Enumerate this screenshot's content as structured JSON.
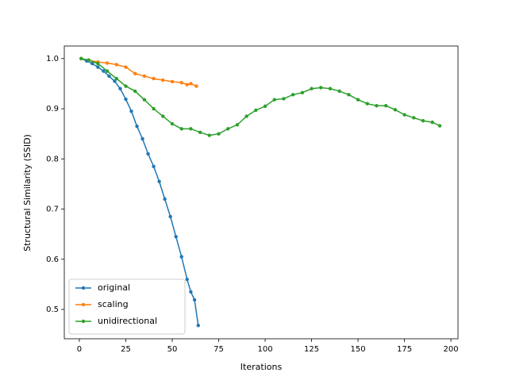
{
  "chart_data": {
    "type": "line",
    "xlabel": "Iterations",
    "ylabel": "Structural Similarity (SSID)",
    "xlim": [
      -8.1,
      203.8
    ],
    "ylim": [
      0.4415,
      1.025
    ],
    "xticks": [
      0,
      25,
      50,
      75,
      100,
      125,
      150,
      175,
      200
    ],
    "yticks": [
      {
        "value": 0.5,
        "label": "0.5"
      },
      {
        "value": 0.6,
        "label": "0.6"
      },
      {
        "value": 0.7,
        "label": "0.7"
      },
      {
        "value": 0.8,
        "label": "0.8"
      },
      {
        "value": 0.9,
        "label": "0.9"
      },
      {
        "value": 1.0,
        "label": "1.0"
      }
    ],
    "legend": "lower left",
    "series": [
      {
        "name": "original",
        "color": "#1f77b4",
        "x": [
          1,
          4,
          7,
          10,
          13,
          16,
          19,
          22,
          25,
          28,
          31,
          34,
          37,
          40,
          43,
          46,
          49,
          52,
          55,
          58,
          60,
          62,
          64
        ],
        "values": [
          1.0,
          0.995,
          0.99,
          0.983,
          0.975,
          0.965,
          0.955,
          0.94,
          0.919,
          0.895,
          0.865,
          0.84,
          0.81,
          0.785,
          0.755,
          0.72,
          0.685,
          0.645,
          0.605,
          0.56,
          0.535,
          0.519,
          0.468
        ]
      },
      {
        "name": "scaling",
        "color": "#ff7f0e",
        "x": [
          1,
          5,
          10,
          15,
          20,
          25,
          30,
          35,
          40,
          45,
          50,
          55,
          58,
          60,
          63
        ],
        "values": [
          1.0,
          0.997,
          0.993,
          0.991,
          0.988,
          0.983,
          0.97,
          0.965,
          0.96,
          0.957,
          0.954,
          0.952,
          0.948,
          0.95,
          0.945
        ]
      },
      {
        "name": "unidirectional",
        "color": "#2ca02c",
        "x": [
          1,
          5,
          10,
          15,
          20,
          25,
          30,
          35,
          40,
          45,
          50,
          55,
          60,
          65,
          70,
          75,
          80,
          85,
          90,
          95,
          100,
          105,
          110,
          115,
          120,
          125,
          130,
          135,
          140,
          145,
          150,
          155,
          160,
          165,
          170,
          175,
          180,
          185,
          190,
          194
        ],
        "values": [
          1.0,
          0.997,
          0.99,
          0.975,
          0.96,
          0.945,
          0.935,
          0.918,
          0.9,
          0.885,
          0.87,
          0.86,
          0.86,
          0.853,
          0.847,
          0.85,
          0.86,
          0.868,
          0.885,
          0.897,
          0.905,
          0.918,
          0.92,
          0.928,
          0.932,
          0.94,
          0.942,
          0.94,
          0.935,
          0.928,
          0.918,
          0.91,
          0.906,
          0.906,
          0.898,
          0.888,
          0.882,
          0.876,
          0.873,
          0.866
        ]
      }
    ]
  }
}
